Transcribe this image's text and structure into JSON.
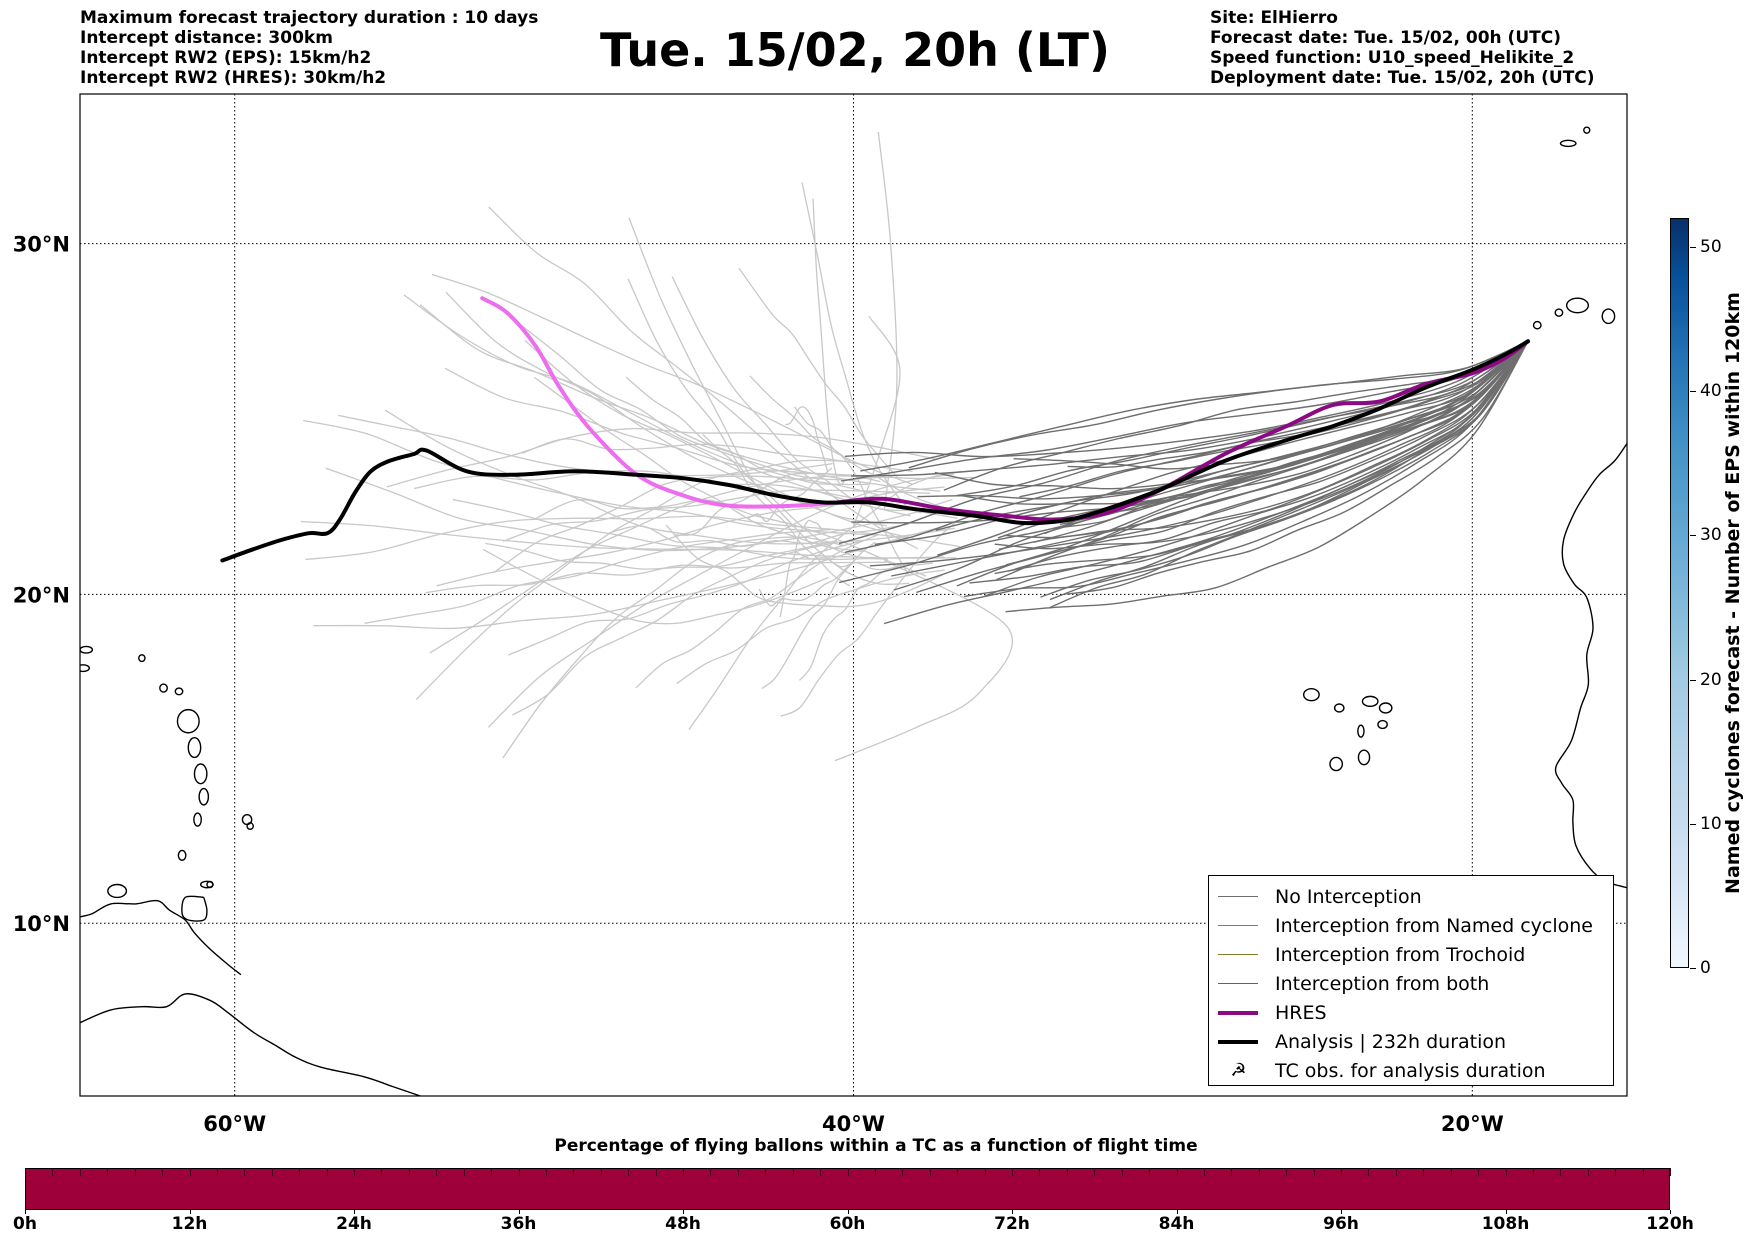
{
  "header": {
    "left_lines": [
      "Maximum forecast trajectory duration : 10 days",
      "Intercept distance: 300km",
      "Intercept RW2 (EPS):  15km/h2",
      "Intercept RW2 (HRES): 30km/h2"
    ],
    "title": "Tue. 15/02, 20h (LT)",
    "right_lines": [
      "Site: ElHierro",
      "Forecast date: Tue. 15/02, 00h (UTC)",
      "Speed function: U10_speed_Helikite_2",
      "Deployment date: Tue. 15/02, 20h (UTC)"
    ]
  },
  "map": {
    "extent": {
      "lon": [
        -65,
        -15
      ],
      "lat": [
        4.6,
        34
      ]
    },
    "lat_gridlines": [
      30,
      20,
      10
    ],
    "lat_labels": [
      "30°N",
      "20°N",
      "10°N"
    ],
    "lon_gridlines": [
      -60,
      -40,
      -20
    ],
    "lon_labels": [
      "60°W",
      "40°W",
      "20°W"
    ],
    "colors": {
      "no_interception": "#6e6e6e",
      "older_trajectory": "#c8c8c8",
      "named_cyclone": "#e8542a",
      "trochoid": "#7f7f2a",
      "both": "#2a8a2a",
      "hres": "#8b0a84",
      "hres_early": "#ee6cee",
      "analysis": "#000000"
    },
    "hres_track": [
      [
        -18.2,
        27.3
      ],
      [
        -19,
        26.8
      ],
      [
        -20,
        26.4
      ],
      [
        -21.5,
        26.1
      ],
      [
        -23,
        25.6
      ],
      [
        -24.5,
        25.5
      ],
      [
        -26,
        24.9
      ],
      [
        -28,
        24.1
      ],
      [
        -30,
        23.1
      ],
      [
        -31.8,
        22.4
      ],
      [
        -33.5,
        22.2
      ],
      [
        -35,
        22.3
      ],
      [
        -37,
        22.5
      ],
      [
        -39,
        22.8
      ],
      [
        -40.5,
        22.7
      ],
      [
        -42,
        22.6
      ],
      [
        -44,
        22.6
      ],
      [
        -45.5,
        22.9
      ],
      [
        -47,
        23.5
      ],
      [
        -48.5,
        24.8
      ],
      [
        -49.5,
        26.0
      ],
      [
        -50.3,
        27.2
      ],
      [
        -51.2,
        28.1
      ],
      [
        -52.0,
        28.5
      ]
    ],
    "hres_split_index": 14,
    "analysis_track": [
      [
        -18.2,
        27.3
      ],
      [
        -19,
        26.9
      ],
      [
        -20,
        26.5
      ],
      [
        -21.5,
        26.0
      ],
      [
        -23,
        25.4
      ],
      [
        -24.5,
        24.9
      ],
      [
        -26,
        24.5
      ],
      [
        -28,
        23.9
      ],
      [
        -30,
        23.1
      ],
      [
        -31.5,
        22.6
      ],
      [
        -33,
        22.2
      ],
      [
        -34.5,
        22.1
      ],
      [
        -36,
        22.3
      ],
      [
        -38,
        22.5
      ],
      [
        -39.5,
        22.7
      ],
      [
        -41,
        22.7
      ],
      [
        -42.5,
        22.9
      ],
      [
        -44,
        23.2
      ],
      [
        -45.5,
        23.4
      ],
      [
        -47,
        23.5
      ],
      [
        -49,
        23.6
      ],
      [
        -51,
        23.5
      ],
      [
        -52.5,
        23.6
      ],
      [
        -53.8,
        24.2
      ],
      [
        -54.2,
        24.1
      ],
      [
        -55,
        23.9
      ],
      [
        -55.6,
        23.6
      ],
      [
        -56.1,
        23.0
      ],
      [
        -56.6,
        22.2
      ],
      [
        -57,
        21.8
      ],
      [
        -57.6,
        21.8
      ],
      [
        -58.5,
        21.6
      ],
      [
        -59.5,
        21.3
      ],
      [
        -60.4,
        21.0
      ]
    ]
  },
  "legend": {
    "items": [
      {
        "key": "no_interception",
        "label": "No Interception"
      },
      {
        "key": "named_cyclone",
        "label": "Interception from Named cyclone"
      },
      {
        "key": "trochoid",
        "label": "Interception from Trochoid"
      },
      {
        "key": "both",
        "label": "Interception from both"
      },
      {
        "key": "hres",
        "label": "HRES"
      },
      {
        "key": "analysis",
        "label": "Analysis | 232h duration"
      },
      {
        "key": "tc_obs",
        "label": "TC obs. for analysis duration"
      }
    ]
  },
  "colorbar_vertical": {
    "title": "Named cyclones forecast - Number of EPS within 120km",
    "min": 0,
    "max": 52,
    "ticks": [
      0,
      10,
      20,
      30,
      40,
      50
    ]
  },
  "colorbar_horizontal": {
    "title": "Percentage of flying ballons within a TC as a function of flight time",
    "ticks": [
      "0h",
      "12h",
      "24h",
      "36h",
      "48h",
      "60h",
      "72h",
      "84h",
      "96h",
      "108h",
      "120h"
    ],
    "color": "#9e003a"
  }
}
